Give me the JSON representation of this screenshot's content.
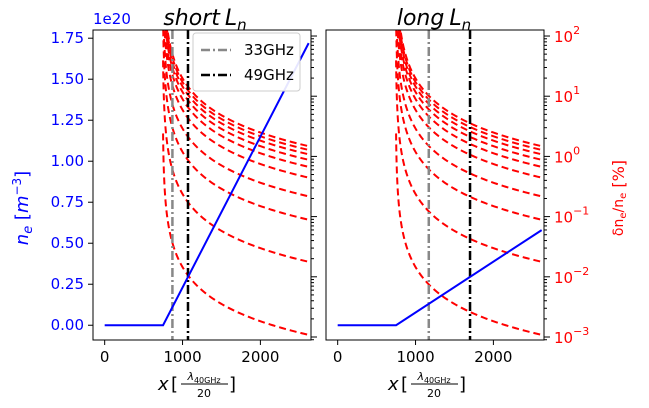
{
  "chart_data": [
    {
      "type": "line",
      "title": "short L_n",
      "title_main": "short",
      "title_var": "L",
      "title_sub": "n",
      "xlabel": "x [λ_40GHz / 20]",
      "ylabel_left": "n_e [m^-3]",
      "ylabel_right": "δn_e / n_e [%]",
      "left_offset_text": "1e20",
      "xlim": [
        -150,
        2650
      ],
      "ylim_left": [
        -0.09,
        1.8
      ],
      "ylim_right_log10": [
        -3.05,
        2.1
      ],
      "right_scale": "log",
      "x_ticks": [
        0,
        1000,
        2000
      ],
      "x_tick_labels": [
        "0",
        "1000",
        "2000"
      ],
      "y_left_ticks": [
        0.0,
        0.25,
        0.5,
        0.75,
        1.0,
        1.25,
        1.5,
        1.75
      ],
      "y_left_tick_labels": [
        "0.00",
        "0.25",
        "0.50",
        "0.75",
        "1.00",
        "1.25",
        "1.50",
        "1.75"
      ],
      "legend": {
        "placement": "top-right",
        "entries": [
          {
            "label": "33GHz",
            "color": "#888888",
            "style": "dashdot"
          },
          {
            "label": "49GHz",
            "color": "#000000",
            "style": "dashdot"
          }
        ]
      },
      "vlines": [
        {
          "name": "33GHz",
          "x": 870,
          "color": "#888888"
        },
        {
          "name": "49GHz",
          "x": 1070,
          "color": "#000000"
        }
      ],
      "density_line": {
        "color": "#0000ff",
        "x": [
          0,
          750,
          2620
        ],
        "y": [
          0.0,
          0.0,
          1.72
        ]
      },
      "fluctuation_curves": {
        "color": "#ff0000",
        "x_start": 750,
        "x_end": 2600,
        "pole_x": 745,
        "end_values_percent": [
          0.0011,
          0.018,
          0.09,
          0.22,
          0.45,
          0.68,
          0.89,
          1.1,
          1.3,
          1.5
        ]
      }
    },
    {
      "type": "line",
      "title": "long L_n",
      "title_main": "long",
      "title_var": "L",
      "title_sub": "n",
      "xlabel": "x [λ_40GHz / 20]",
      "ylabel_right": "δn_e / n_e [%]",
      "xlim": [
        -150,
        2650
      ],
      "ylim_left": [
        -0.09,
        1.8
      ],
      "ylim_right_log10": [
        -3.05,
        2.1
      ],
      "right_scale": "log",
      "x_ticks": [
        0,
        1000,
        2000
      ],
      "x_tick_labels": [
        "0",
        "1000",
        "2000"
      ],
      "y_right_ticks_log10": [
        -3,
        -2,
        -1,
        0,
        1,
        2
      ],
      "y_right_tick_base": "10",
      "y_right_tick_exponents": [
        "−3",
        "−2",
        "−1",
        "0",
        "1",
        "2"
      ],
      "vlines": [
        {
          "name": "33GHz",
          "x": 1170,
          "color": "#888888"
        },
        {
          "name": "49GHz",
          "x": 1700,
          "color": "#000000"
        }
      ],
      "density_line": {
        "color": "#0000ff",
        "x": [
          0,
          750,
          2620
        ],
        "y": [
          0.0,
          0.0,
          0.58
        ]
      },
      "fluctuation_curves": {
        "color": "#ff0000",
        "x_start": 750,
        "x_end": 2600,
        "pole_x": 745,
        "end_values_percent": [
          0.0011,
          0.018,
          0.09,
          0.22,
          0.45,
          0.68,
          0.89,
          1.1,
          1.3,
          1.5
        ]
      }
    }
  ]
}
